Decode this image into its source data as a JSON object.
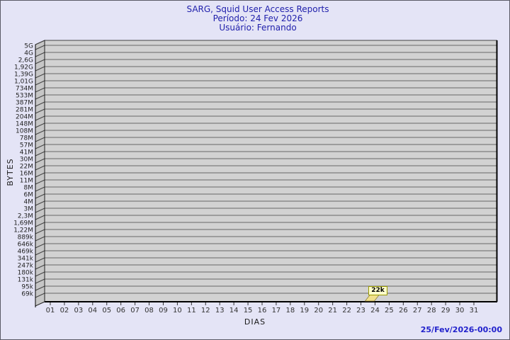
{
  "header": {
    "title": "SARG, Squid User Access Reports",
    "period": "Período: 24 Fev 2026",
    "user": "Usuário: Fernando"
  },
  "footer": {
    "timestamp": "25/Fev/2026-00:00"
  },
  "chart_data": {
    "type": "bar",
    "title": "SARG, Squid User Access Reports",
    "subtitle": [
      "Período: 24 Fev 2026",
      "Usuário: Fernando"
    ],
    "xlabel": "DIAS",
    "ylabel": "BYTES",
    "yscale": "log",
    "grid": true,
    "categories": [
      "01",
      "02",
      "03",
      "04",
      "05",
      "06",
      "07",
      "08",
      "09",
      "10",
      "11",
      "12",
      "13",
      "14",
      "15",
      "16",
      "17",
      "18",
      "19",
      "20",
      "21",
      "22",
      "23",
      "24",
      "25",
      "26",
      "27",
      "28",
      "29",
      "30",
      "31"
    ],
    "values": [
      0,
      0,
      0,
      0,
      0,
      0,
      0,
      0,
      0,
      0,
      0,
      0,
      0,
      0,
      0,
      0,
      0,
      0,
      0,
      0,
      0,
      0,
      0,
      22000,
      0,
      0,
      0,
      0,
      0,
      0,
      0
    ],
    "value_unit": "bytes",
    "ytick_labels": [
      "5G",
      "4G",
      "2,6G",
      "1,92G",
      "1,39G",
      "1,01G",
      "734M",
      "533M",
      "387M",
      "281M",
      "204M",
      "148M",
      "108M",
      "78M",
      "57M",
      "41M",
      "30M",
      "22M",
      "16M",
      "11M",
      "8M",
      "6M",
      "4M",
      "3M",
      "2,3M",
      "1,69M",
      "1,22M",
      "889k",
      "646k",
      "469k",
      "341k",
      "247k",
      "180k",
      "131k",
      "95k",
      "69k"
    ],
    "annotations": [
      {
        "category": "24",
        "label": "22k"
      }
    ],
    "colors": {
      "page_bg": "#e4e4f6",
      "plot_bg": "#d2d2d2",
      "wall": "#c6c6c6",
      "grid": "#686868",
      "frame": "#000000",
      "bar": "#f0e08c",
      "bar_edge": "#8b7d3a",
      "tooltip_bg": "#ffffcc",
      "tooltip_border": "#9a9a00",
      "title_text": "#2121ac",
      "timestamp_text": "#2222cc",
      "tick_text": "#222222"
    }
  }
}
